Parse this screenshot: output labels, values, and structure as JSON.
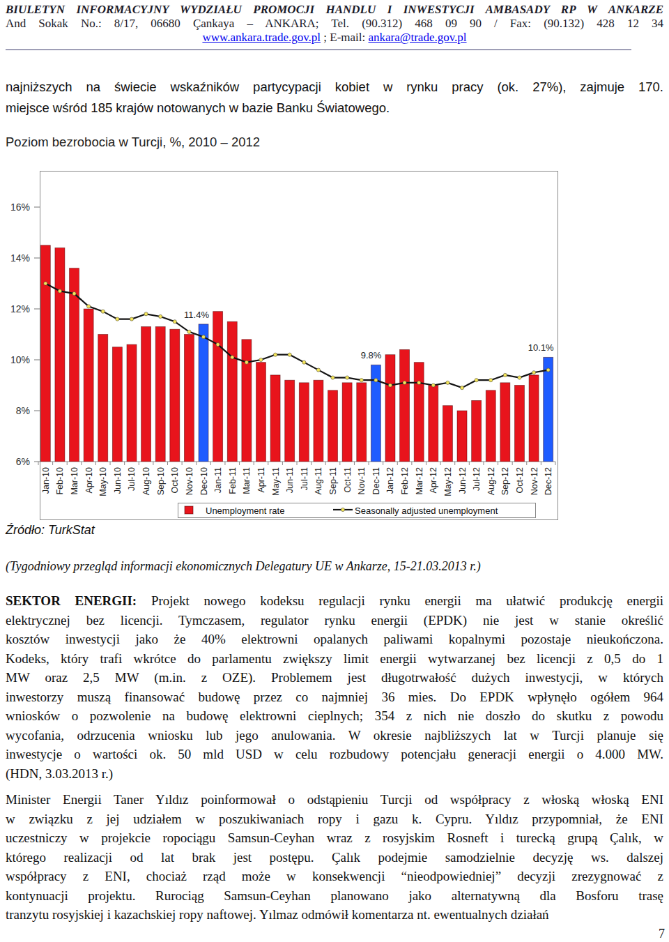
{
  "header": {
    "title": "BIULETYN INFORMACYJNY WYDZIAŁU PROMOCJI HANDLU I INWESTYCJI AMBASADY RP W ANKARZE",
    "address": "And Sokak No.: 8/17, 06680 Çankaya – ANKARA; Tel. (90.312) 468 09 90 / Fax: (90.132) 428 12 34",
    "website": "www.ankara.trade.gov.pl",
    "email_label": "; E-mail:",
    "email": "ankara@trade.gov.pl"
  },
  "intro_lines": [
    "najniższych na świecie wskaźników partycypacji kobiet w rynku pracy (ok. 27%), zajmuje 170.",
    "miejsce wśród 185 krajów notowanych w bazie Banku Światowego."
  ],
  "chart_data": {
    "type": "bar",
    "title": "Poziom bezrobocia w Turcji, %, 2010 – 2012",
    "categories": [
      "Jan-10",
      "Feb-10",
      "Mar-10",
      "Apr-10",
      "May-10",
      "Jun-10",
      "Jul-10",
      "Aug-10",
      "Sep-10",
      "Oct-10",
      "Nov-10",
      "Dec-10",
      "Jan-11",
      "Feb-11",
      "Mar-11",
      "Apr-11",
      "May-11",
      "Jun-11",
      "Jul-11",
      "Aug-11",
      "Sep-11",
      "Oct-11",
      "Nov-11",
      "Dec-11",
      "Jan-12",
      "Feb-12",
      "Mar-12",
      "Apr-12",
      "May-12",
      "Jun-12",
      "Jul-12",
      "Aug-12",
      "Sep-12",
      "Oct-12",
      "Nov-12",
      "Dec-12"
    ],
    "series": [
      {
        "name": "Unemployment rate",
        "type": "bar",
        "color": "#e8141c",
        "colors": [
          "#e8141c",
          "#e8141c",
          "#e8141c",
          "#e8141c",
          "#e8141c",
          "#e8141c",
          "#e8141c",
          "#e8141c",
          "#e8141c",
          "#e8141c",
          "#e8141c",
          "#1f5cff",
          "#e8141c",
          "#e8141c",
          "#e8141c",
          "#e8141c",
          "#e8141c",
          "#e8141c",
          "#e8141c",
          "#e8141c",
          "#e8141c",
          "#e8141c",
          "#e8141c",
          "#1f5cff",
          "#e8141c",
          "#e8141c",
          "#e8141c",
          "#e8141c",
          "#e8141c",
          "#e8141c",
          "#e8141c",
          "#e8141c",
          "#e8141c",
          "#e8141c",
          "#e8141c",
          "#1f5cff"
        ],
        "values": [
          14.5,
          14.4,
          13.6,
          12,
          11,
          10.5,
          10.6,
          11.3,
          11.3,
          11.2,
          11,
          11.4,
          11.9,
          11.5,
          10.8,
          9.9,
          9.4,
          9.2,
          9.1,
          9.2,
          8.8,
          9.1,
          9.1,
          9.8,
          10.2,
          10.4,
          9.9,
          9,
          8.2,
          8,
          8.4,
          8.8,
          9.1,
          9,
          9.4,
          10.1
        ],
        "value_labels": [
          null,
          null,
          null,
          null,
          null,
          null,
          null,
          null,
          null,
          null,
          null,
          "11.4%",
          null,
          null,
          null,
          null,
          null,
          null,
          null,
          null,
          null,
          null,
          null,
          "9.8%",
          null,
          null,
          null,
          null,
          null,
          null,
          null,
          null,
          null,
          null,
          null,
          "10.1%"
        ]
      },
      {
        "name": "Seasonally adjusted unemployment",
        "type": "line",
        "color": "#141414",
        "marker": "circle",
        "values": [
          13,
          12.7,
          12.6,
          12.1,
          11.9,
          11.6,
          11.6,
          11.8,
          11.7,
          11.5,
          11.1,
          10.9,
          10.6,
          10.1,
          9.9,
          10,
          10.2,
          10.2,
          9.9,
          9.6,
          9.3,
          9.3,
          9.2,
          9.2,
          9,
          9.1,
          9.1,
          9,
          9.1,
          8.9,
          9.2,
          9.2,
          9.4,
          9.3,
          9.5,
          9.6
        ]
      }
    ],
    "ylim": [
      6,
      16
    ],
    "yticks": [
      {
        "value": 6,
        "label": "6%"
      },
      {
        "value": 8,
        "label": "8%"
      },
      {
        "value": 10,
        "label": "10%"
      },
      {
        "value": 12,
        "label": "12%"
      },
      {
        "value": 14,
        "label": "14%"
      },
      {
        "value": 16,
        "label": "16%"
      }
    ],
    "grid": false,
    "legend": "bottom"
  },
  "chart_source": "Źródło: TurkStat",
  "citation": "(Tygodniowy przegląd informacji ekonomicznych Delegatury UE w Ankarze, 15-21.03.2013 r.)",
  "paragraphs": [
    {
      "lead": "SEKTOR ENERGII:",
      "lines": [
        "Projekt nowego kodeksu regulacji rynku energii ma ułatwić produkcję energii",
        "elektrycznej bez licencji. Tymczasem, regulator rynku energii (EPDK) nie jest w stanie określić",
        "kosztów inwestycji jako że 40% elektrowni opalanych paliwami kopalnymi pozostaje nieukończona.",
        "Kodeks, który trafi wkrótce do parlamentu zwiększy limit energii wytwarzanej bez licencji z 0,5 do 1",
        "MW oraz 2,5 MW (m.in. z OZE). Problemem jest długotrwałość dużych inwestycji, w których",
        "inwestorzy muszą finansować budowę przez co najmniej 36 mies. Do EPDK wpłynęło ogółem 964",
        "wniosków o pozwolenie na budowę elektrowni cieplnych; 354 z nich nie doszło do skutku z powodu",
        "wycofania, odrzucenia wniosku lub jego anulowania. W okresie najbliższych lat w Turcji planuje się",
        "inwestycje o wartości ok. 50 mld USD w celu rozbudowy potencjału generacji energii o 4.000 MW.",
        "(HDN, 3.03.2013 r.)"
      ]
    },
    {
      "lines": [
        "Minister Energii Taner Yıldız poinformował o odstąpieniu Turcji od współpracy z włoską włoską ENI",
        "w związku z jej udziałem w poszukiwaniach ropy i gazu k. Cypru. Yıldız przypomniał, że ENI",
        "uczestniczy w projekcie ropociągu Samsun-Ceyhan wraz z rosyjskim Rosneft i turecką grupą Çalık, w",
        "którego realizacji od lat brak jest postępu. Çalık podejmie samodzielnie decyzję ws. dalszej",
        "współpracy z ENI, chociaż rząd może w konsekwencji “nieodpowiedniej” decyzji zrezygnować z",
        "kontynuacji projektu. Rurociąg Samsun-Ceyhan planowano jako alternatywną dla Bosforu trasę",
        "tranzytu rosyjskiej i kazachskiej ropy naftowej. Yılmaz odmówił komentarza nt. ewentualnych działań"
      ]
    }
  ],
  "page_number": 7
}
